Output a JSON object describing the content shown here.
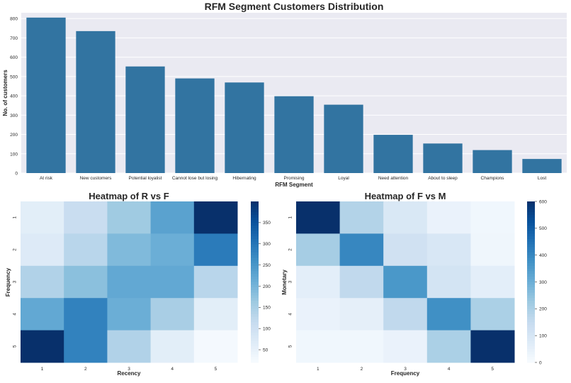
{
  "chart_data": [
    {
      "type": "bar",
      "title": "RFM Segment Customers Distribution",
      "xlabel": "RFM Segment",
      "ylabel": "No. of customers",
      "ylim": [
        0,
        830
      ],
      "yticks": [
        0,
        100,
        200,
        300,
        400,
        500,
        600,
        700,
        800
      ],
      "grid": true,
      "color": "#3274a1",
      "categories": [
        "At risk",
        "New customers",
        "Potential loyalist",
        "Cannot lose but losing",
        "Hibernating",
        "Promising",
        "Loyal",
        "Need attention",
        "About to sleep",
        "Champions",
        "Lost"
      ],
      "values": [
        805,
        735,
        552,
        490,
        469,
        398,
        354,
        198,
        153,
        119,
        73
      ]
    },
    {
      "type": "heatmap",
      "title": "Heatmap of R vs F",
      "xlabel": "Recency",
      "ylabel": "Frequency",
      "x_ticklabels": [
        "1",
        "2",
        "3",
        "4",
        "5"
      ],
      "y_ticklabels": [
        "1",
        "2",
        "3",
        "4",
        "5"
      ],
      "cmap": "Blues",
      "vmin": 20,
      "vmax": 400,
      "colorbar_ticks": [
        50,
        100,
        150,
        200,
        250,
        300,
        350
      ],
      "values": [
        [
          60,
          110,
          160,
          230,
          400
        ],
        [
          70,
          130,
          190,
          210,
          290
        ],
        [
          140,
          180,
          220,
          220,
          130
        ],
        [
          220,
          280,
          210,
          150,
          60
        ],
        [
          400,
          280,
          140,
          60,
          25
        ]
      ]
    },
    {
      "type": "heatmap",
      "title": "Heatmap of F vs M",
      "xlabel": "Frequency",
      "ylabel": "Monetary",
      "x_ticklabels": [
        "1",
        "2",
        "3",
        "4",
        "5"
      ],
      "y_ticklabels": [
        "1",
        "2",
        "3",
        "4",
        "5"
      ],
      "cmap": "Blues",
      "vmin": 0,
      "vmax": 600,
      "colorbar_ticks": [
        0,
        100,
        200,
        300,
        400,
        500,
        600
      ],
      "values": [
        [
          600,
          185,
          90,
          40,
          20
        ],
        [
          210,
          400,
          120,
          95,
          25
        ],
        [
          60,
          160,
          360,
          110,
          60
        ],
        [
          40,
          55,
          160,
          380,
          200
        ],
        [
          20,
          20,
          40,
          200,
          600
        ]
      ]
    }
  ]
}
